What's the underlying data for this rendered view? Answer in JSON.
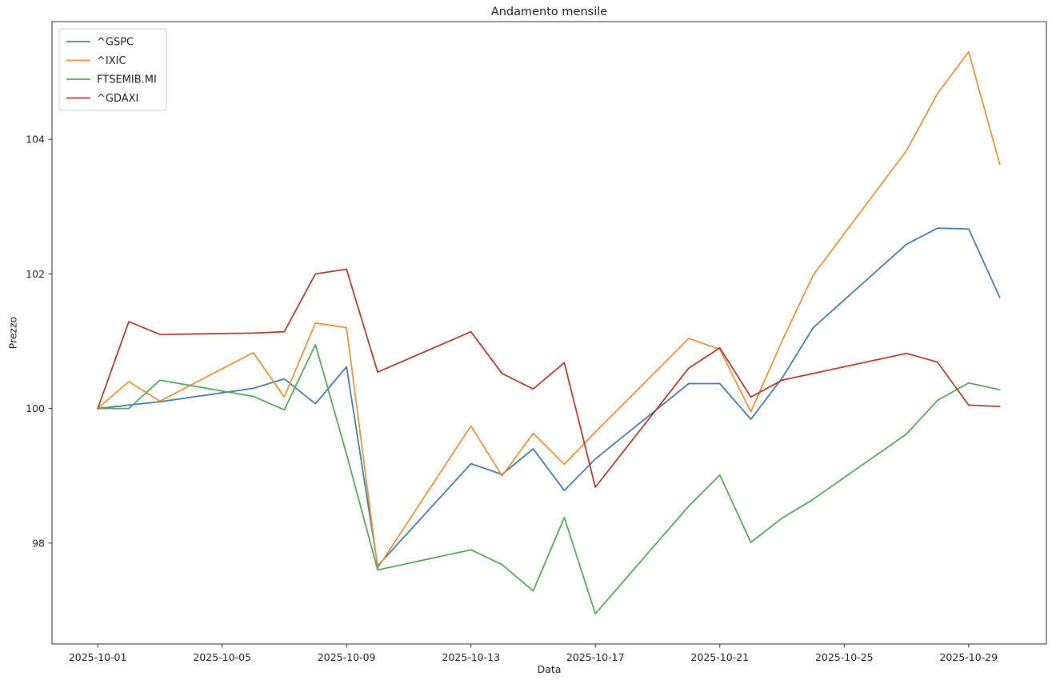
{
  "chart_data": {
    "type": "line",
    "title": "Andamento mensile",
    "xlabel": "Data",
    "ylabel": "Prezzo",
    "grid": false,
    "legend_position": "upper left",
    "ylim": [
      96.5,
      105.75
    ],
    "x_range_days": [
      -0.47,
      31.5
    ],
    "y_ticks": [
      "98",
      "100",
      "102",
      "104"
    ],
    "x_ticks": [
      "2025-10-01",
      "2025-10-05",
      "2025-10-09",
      "2025-10-13",
      "2025-10-17",
      "2025-10-21",
      "2025-10-25",
      "2025-10-29"
    ],
    "dates": [
      "2025-10-01",
      "2025-10-02",
      "2025-10-03",
      "2025-10-06",
      "2025-10-07",
      "2025-10-08",
      "2025-10-09",
      "2025-10-10",
      "2025-10-13",
      "2025-10-14",
      "2025-10-15",
      "2025-10-16",
      "2025-10-17",
      "2025-10-20",
      "2025-10-21",
      "2025-10-22",
      "2025-10-23",
      "2025-10-24",
      "2025-10-27",
      "2025-10-28",
      "2025-10-29",
      "2025-10-30"
    ],
    "series": [
      {
        "name": "^GSPC",
        "color": "#4878a6",
        "values": [
          100.0,
          100.05,
          100.1,
          100.3,
          100.44,
          100.07,
          100.62,
          97.66,
          99.18,
          99.02,
          99.4,
          98.78,
          99.25,
          100.37,
          100.37,
          99.84,
          100.45,
          101.2,
          102.44,
          102.68,
          102.67,
          101.65
        ]
      },
      {
        "name": "^IXIC",
        "color": "#e1933f",
        "values": [
          100.0,
          100.4,
          100.11,
          100.83,
          100.17,
          101.27,
          101.2,
          97.63,
          99.74,
          99.0,
          99.63,
          99.17,
          99.65,
          101.04,
          100.88,
          99.95,
          101.0,
          101.98,
          103.83,
          104.68,
          105.3,
          103.63
        ]
      },
      {
        "name": "FTSEMIB.MI",
        "color": "#58a35a",
        "values": [
          100.0,
          100.0,
          100.42,
          100.18,
          99.98,
          100.95,
          99.32,
          97.6,
          97.9,
          97.68,
          97.29,
          98.38,
          96.95,
          98.55,
          99.01,
          98.01,
          98.37,
          98.65,
          99.62,
          100.12,
          100.38,
          100.28
        ]
      },
      {
        "name": "^GDAXI",
        "color": "#a63d32",
        "values": [
          100.0,
          101.29,
          101.1,
          101.12,
          101.14,
          102.0,
          102.07,
          100.54,
          101.14,
          100.52,
          100.29,
          100.68,
          98.83,
          100.6,
          100.9,
          100.17,
          100.42,
          100.52,
          100.82,
          100.69,
          100.05,
          100.03
        ]
      }
    ]
  }
}
